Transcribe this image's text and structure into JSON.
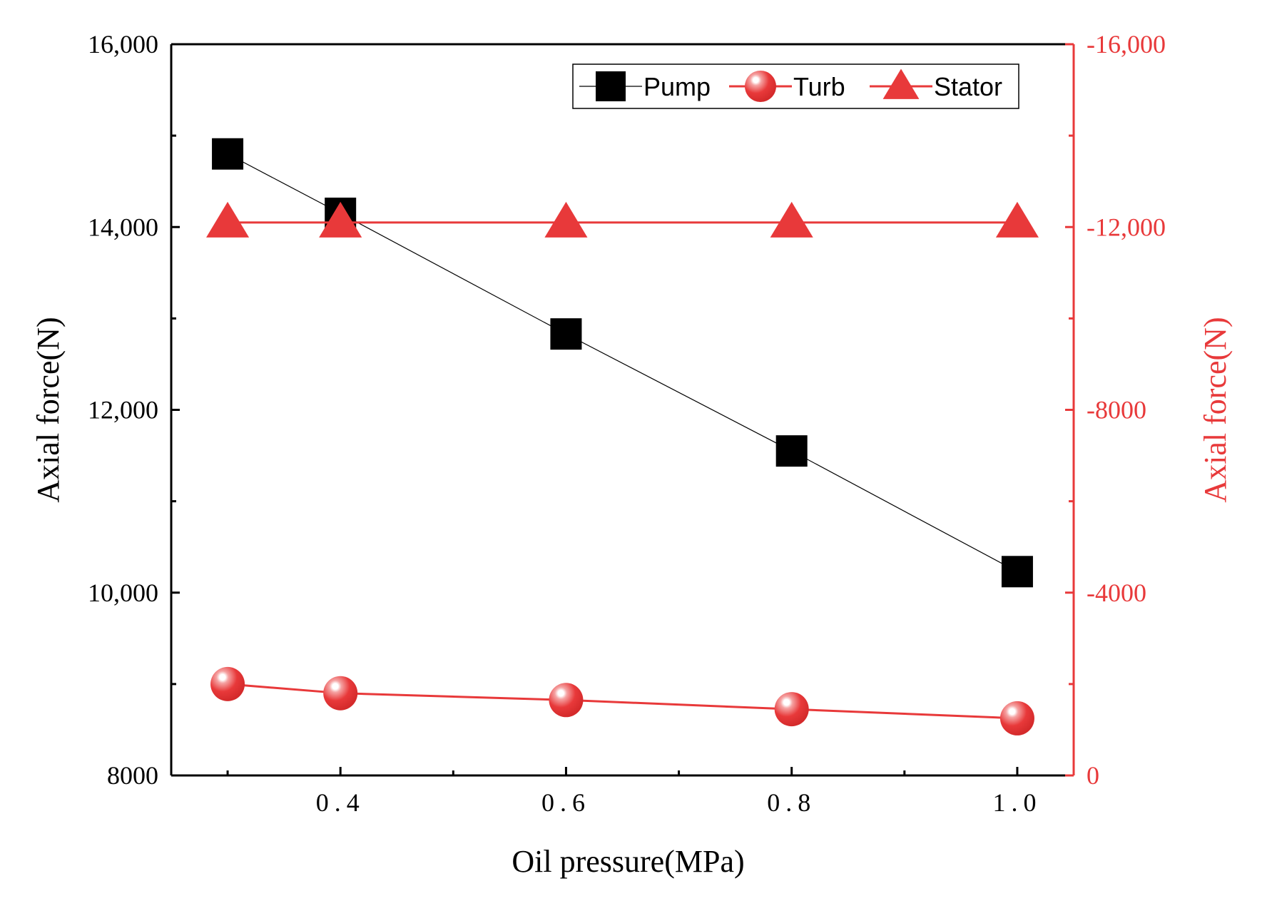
{
  "chart_data": {
    "type": "line",
    "x": [
      0.3,
      0.4,
      0.6,
      0.8,
      1.0
    ],
    "xlabel": "Oil pressure(MPa)",
    "xlim": [
      0.25,
      1.05
    ],
    "xticks": [
      0.4,
      0.6,
      0.8,
      1.0
    ],
    "xtick_labels": [
      "0.4",
      "0.6",
      "0.8",
      "1.0"
    ],
    "xminor": [
      0.3,
      0.5,
      0.7,
      0.9
    ],
    "left_axis": {
      "label": "Axial force(N)",
      "ylim": [
        8000,
        16000
      ],
      "ticks": [
        8000,
        10000,
        12000,
        14000,
        16000
      ],
      "tick_labels": [
        "8000",
        "10,000",
        "12,000",
        "14,000",
        "16,000"
      ],
      "minor": [
        9000,
        11000,
        13000,
        15000
      ]
    },
    "right_axis": {
      "label": "Axial force(N)",
      "ylim": [
        0,
        -16000
      ],
      "ticks": [
        0,
        -4000,
        -8000,
        -12000,
        -16000
      ],
      "tick_labels": [
        "0",
        "-4000",
        "-8000",
        "-12,000",
        "-16,000"
      ],
      "minor": [
        -2000,
        -6000,
        -10000,
        -14000
      ],
      "color": "#e8393a"
    },
    "series": [
      {
        "name": "Pump",
        "axis": "left",
        "marker": "square",
        "color": "#000000",
        "values": [
          14800,
          14150,
          12830,
          11550,
          10230
        ]
      },
      {
        "name": "Turb",
        "axis": "right",
        "marker": "sphere",
        "color": "#e8393a",
        "values": [
          -2000,
          -1800,
          -1650,
          -1450,
          -1250
        ]
      },
      {
        "name": "Stator",
        "axis": "right",
        "marker": "triangle",
        "color": "#e8393a",
        "values": [
          -12100,
          -12100,
          -12100,
          -12100,
          -12100
        ]
      }
    ],
    "legend": {
      "position": "top-right",
      "entries": [
        "Pump",
        "Turb",
        "Stator"
      ]
    }
  }
}
